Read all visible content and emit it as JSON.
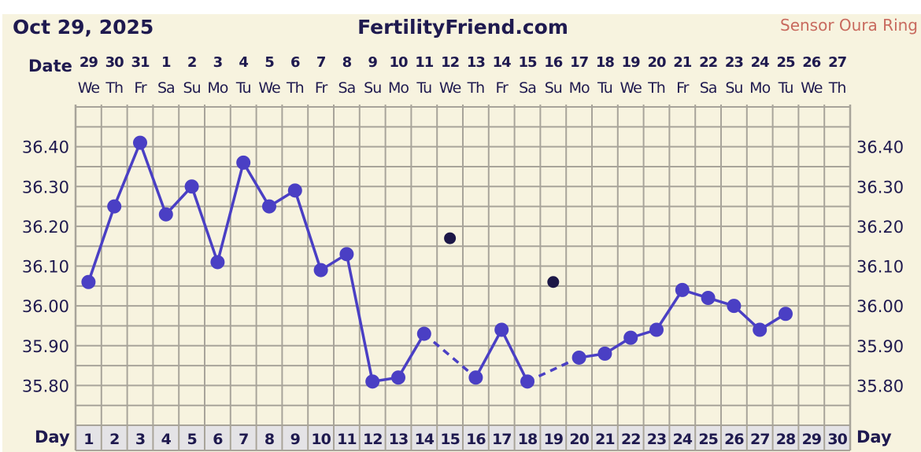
{
  "header": {
    "date": "Oct 29, 2025",
    "site": "FertilityFriend.com",
    "sensor": "Sensor Oura Ring"
  },
  "labels": {
    "date_row": "Date",
    "day_row": "Day"
  },
  "colors": {
    "line": "#4a3fc4",
    "excluded_point": "#1c1747",
    "grid": "#a8a49a",
    "background": "#f7f3df",
    "text": "#1f1a4f"
  },
  "chart_data": {
    "type": "line",
    "dates": [
      "29",
      "30",
      "31",
      "1",
      "2",
      "3",
      "4",
      "5",
      "6",
      "7",
      "8",
      "9",
      "10",
      "11",
      "12",
      "13",
      "14",
      "15",
      "16",
      "17",
      "18",
      "19",
      "20",
      "21",
      "22",
      "23",
      "24",
      "25",
      "26",
      "27"
    ],
    "weekdays": [
      "We",
      "Th",
      "Fr",
      "Sa",
      "Su",
      "Mo",
      "Tu",
      "We",
      "Th",
      "Fr",
      "Sa",
      "Su",
      "Mo",
      "Tu",
      "We",
      "Th",
      "Fr",
      "Sa",
      "Su",
      "Mo",
      "Tu",
      "We",
      "Th",
      "Fr",
      "Sa",
      "Su",
      "Mo",
      "Tu",
      "We",
      "Th"
    ],
    "days": [
      "1",
      "2",
      "3",
      "4",
      "5",
      "6",
      "7",
      "8",
      "9",
      "10",
      "11",
      "12",
      "13",
      "14",
      "15",
      "16",
      "17",
      "18",
      "19",
      "20",
      "21",
      "22",
      "23",
      "24",
      "25",
      "26",
      "27",
      "28",
      "29",
      "30"
    ],
    "ylim": [
      35.7,
      36.5
    ],
    "yticks": [
      "36.40",
      "36.30",
      "36.20",
      "36.10",
      "36.00",
      "35.90",
      "35.80"
    ],
    "grid": true,
    "points": [
      {
        "day": 1,
        "temp": 36.06
      },
      {
        "day": 2,
        "temp": 36.25
      },
      {
        "day": 3,
        "temp": 36.41
      },
      {
        "day": 4,
        "temp": 36.23
      },
      {
        "day": 5,
        "temp": 36.3
      },
      {
        "day": 6,
        "temp": 36.11
      },
      {
        "day": 7,
        "temp": 36.36
      },
      {
        "day": 8,
        "temp": 36.25
      },
      {
        "day": 9,
        "temp": 36.29
      },
      {
        "day": 10,
        "temp": 36.09
      },
      {
        "day": 11,
        "temp": 36.13
      },
      {
        "day": 12,
        "temp": 35.81
      },
      {
        "day": 13,
        "temp": 35.82
      },
      {
        "day": 14,
        "temp": 35.93
      },
      {
        "day": 15,
        "temp": 36.17,
        "excluded": true
      },
      {
        "day": 16,
        "temp": 35.82
      },
      {
        "day": 17,
        "temp": 35.94
      },
      {
        "day": 18,
        "temp": 35.81
      },
      {
        "day": 19,
        "temp": 36.06,
        "excluded": true
      },
      {
        "day": 20,
        "temp": 35.87
      },
      {
        "day": 21,
        "temp": 35.88
      },
      {
        "day": 22,
        "temp": 35.92
      },
      {
        "day": 23,
        "temp": 35.94
      },
      {
        "day": 24,
        "temp": 36.04
      },
      {
        "day": 25,
        "temp": 36.02
      },
      {
        "day": 26,
        "temp": 36.0
      },
      {
        "day": 27,
        "temp": 35.94
      },
      {
        "day": 28,
        "temp": 35.98
      }
    ]
  }
}
